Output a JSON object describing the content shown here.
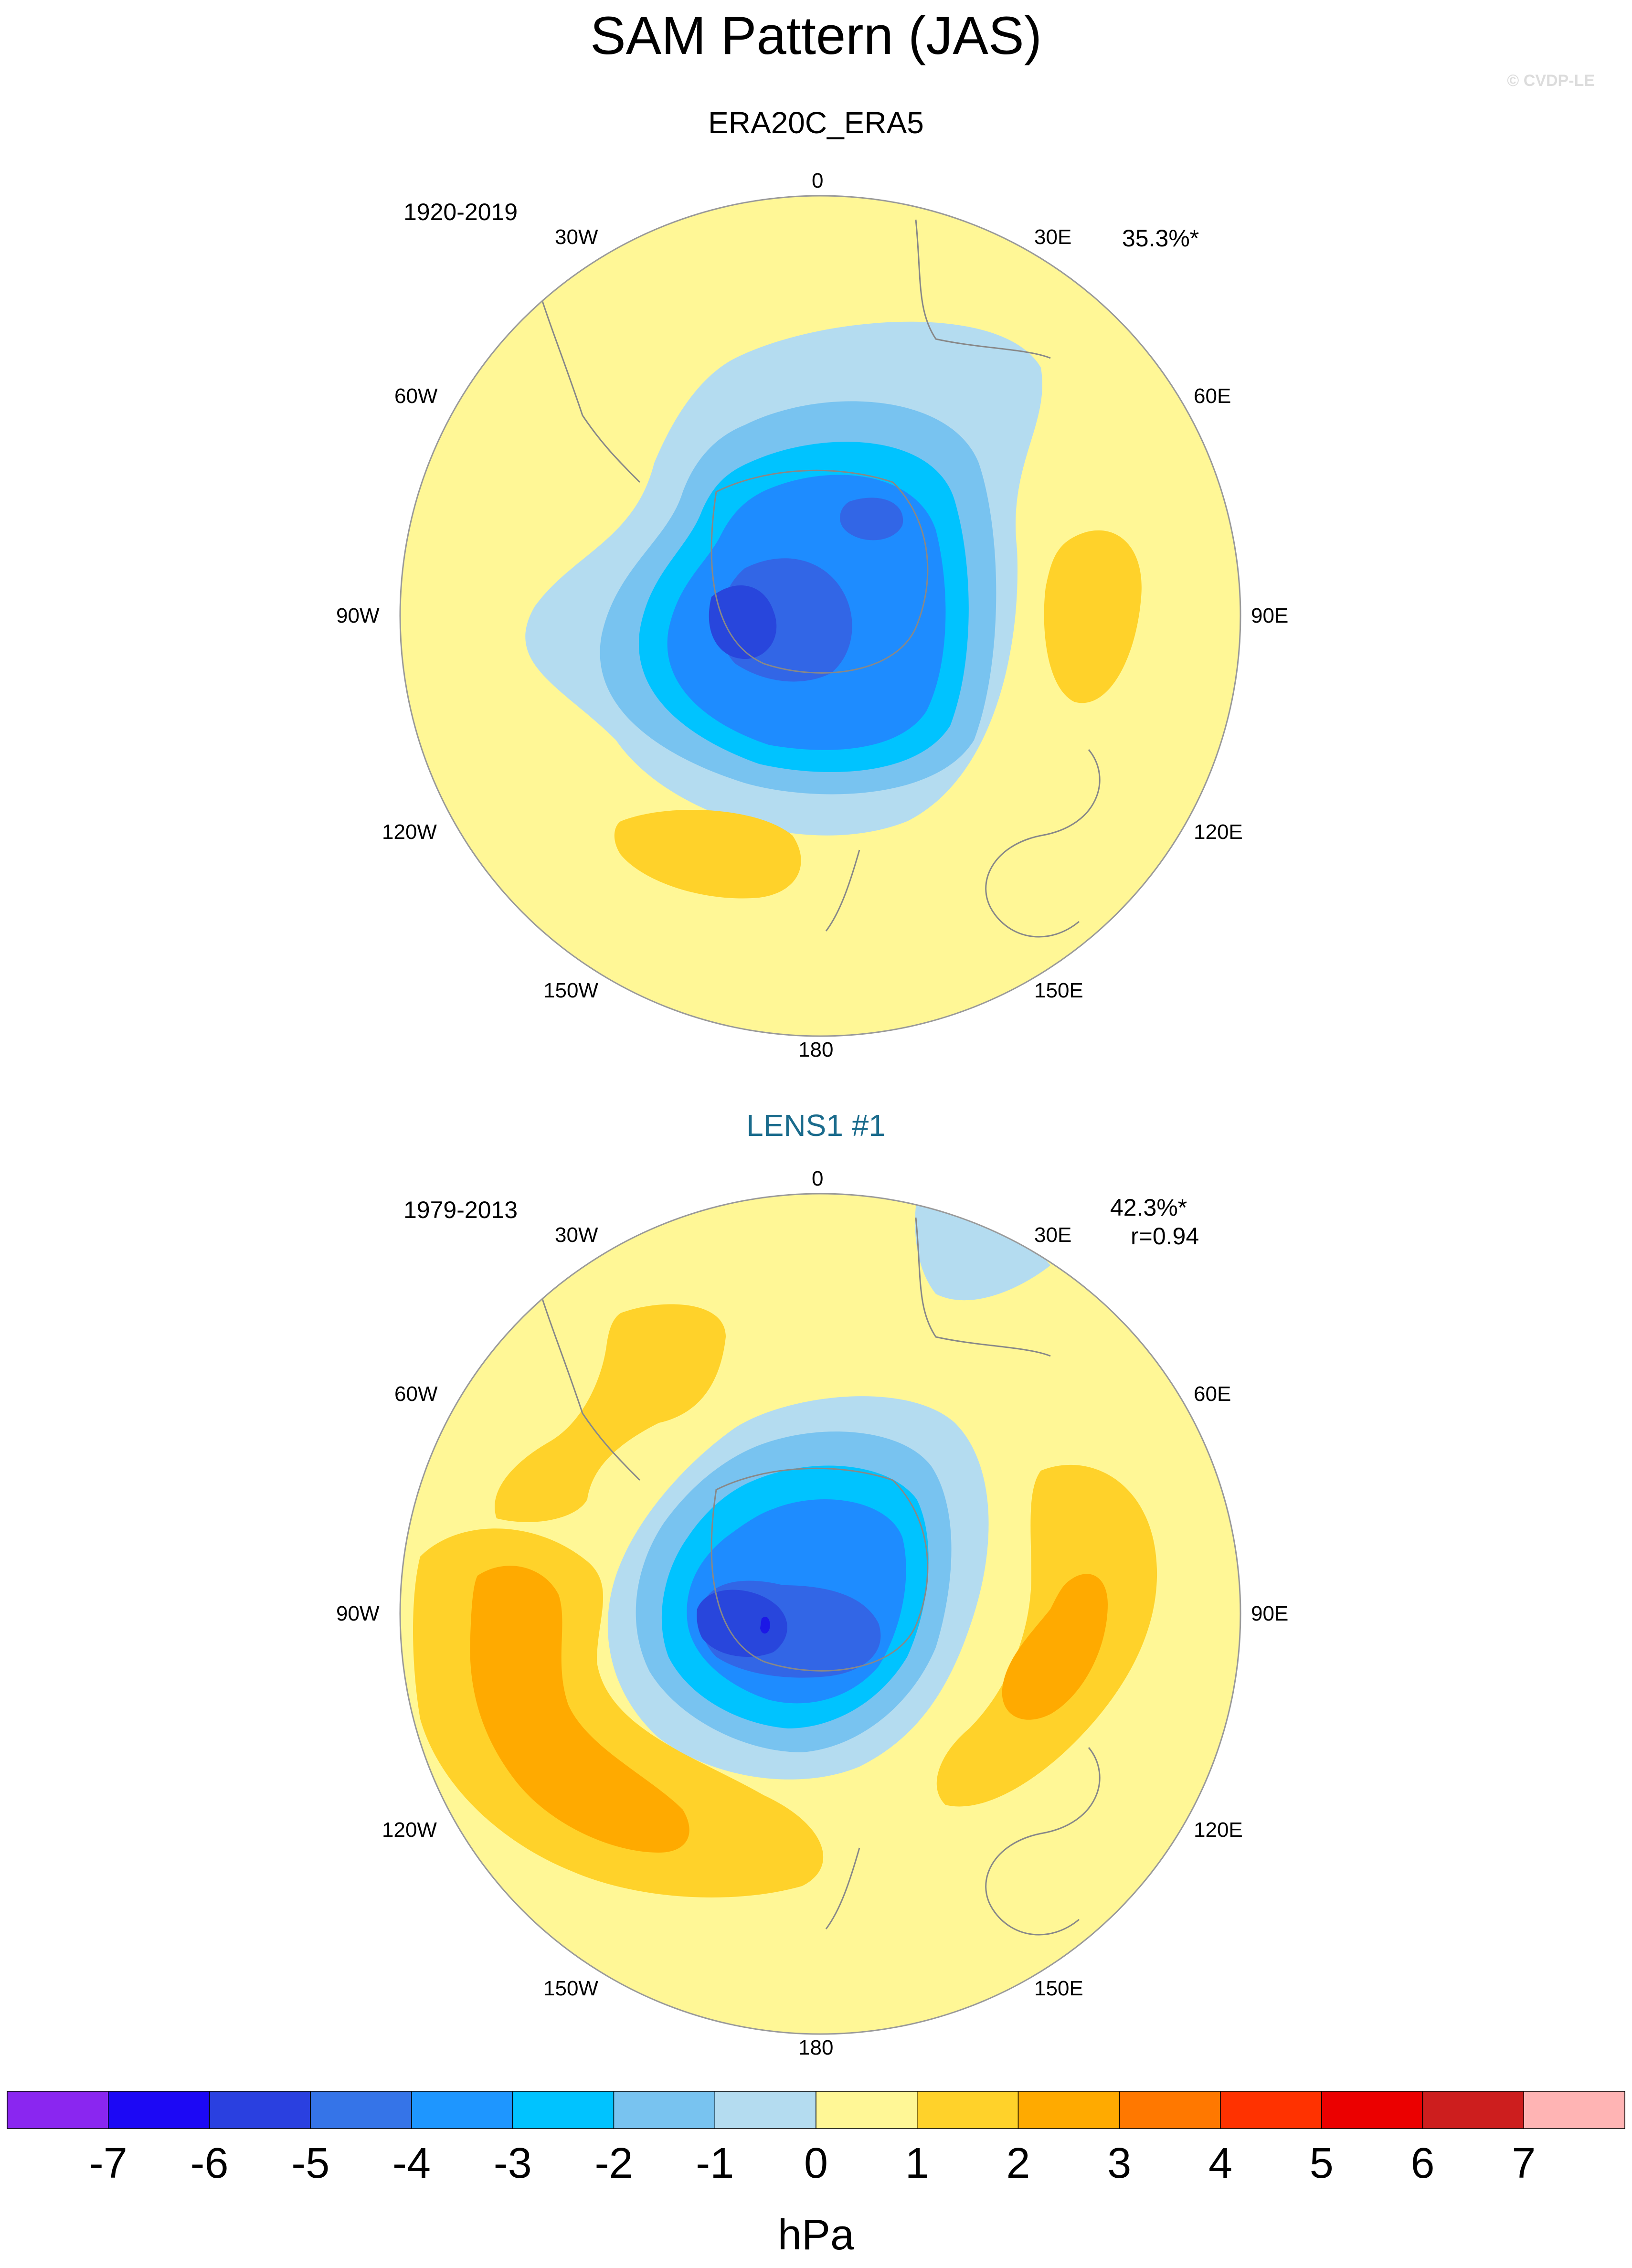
{
  "title": "SAM Pattern (JAS)",
  "watermark": "© CVDP-LE",
  "colors": {
    "ocean_bg": "#fff796",
    "neg1": "#b4dcf0",
    "neg2": "#78c3f0",
    "neg3": "#00c3ff",
    "neg4": "#1e8cff",
    "neg5": "#3266e6",
    "neg6": "#2846dc",
    "neg7": "#1c18e6",
    "pos1": "#ffd22a",
    "pos2": "#ffaa00",
    "coast": "#888888"
  },
  "panels": [
    {
      "title": "ERA20C_ERA5",
      "period": "1920-2019",
      "variance": "35.3%*",
      "correlation": ""
    },
    {
      "title": "LENS1 #1",
      "period": "1979-2013",
      "variance": "42.3%*",
      "correlation": "r=0.94"
    }
  ],
  "longitude_labels": {
    "n": "0",
    "e30": "30E",
    "e60": "60E",
    "e90": "90E",
    "e120": "120E",
    "e150": "150E",
    "s": "180",
    "w150": "150W",
    "w120": "120W",
    "w90": "90W",
    "w60": "60W",
    "w30": "30W"
  },
  "colorbar": {
    "unit": "hPa",
    "ticks": [
      "-7",
      "-6",
      "-5",
      "-4",
      "-3",
      "-2",
      "-1",
      "0",
      "1",
      "2",
      "3",
      "4",
      "5",
      "6",
      "7"
    ],
    "colors": [
      "#8a26f0",
      "#1c08f5",
      "#2a40e0",
      "#3574e8",
      "#1e96ff",
      "#00c3ff",
      "#78c3f0",
      "#b4dcf0",
      "#fff796",
      "#ffd22a",
      "#ffaa00",
      "#ff7800",
      "#ff3200",
      "#eb0000",
      "#cd1e1e",
      "#ffb4b4"
    ]
  }
}
